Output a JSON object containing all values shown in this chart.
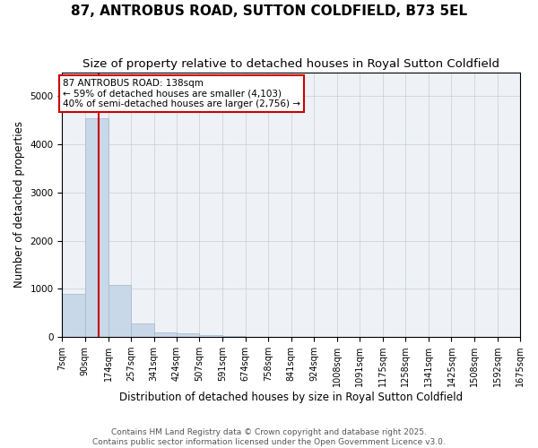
{
  "title": "87, ANTROBUS ROAD, SUTTON COLDFIELD, B73 5EL",
  "subtitle": "Size of property relative to detached houses in Royal Sutton Coldfield",
  "xlabel": "Distribution of detached houses by size in Royal Sutton Coldfield",
  "ylabel": "Number of detached properties",
  "bin_labels": [
    "7sqm",
    "90sqm",
    "174sqm",
    "257sqm",
    "341sqm",
    "424sqm",
    "507sqm",
    "591sqm",
    "674sqm",
    "758sqm",
    "841sqm",
    "924sqm",
    "1008sqm",
    "1091sqm",
    "1175sqm",
    "1258sqm",
    "1341sqm",
    "1425sqm",
    "1508sqm",
    "1592sqm",
    "1675sqm"
  ],
  "bin_edges": [
    7,
    90,
    174,
    257,
    341,
    424,
    507,
    591,
    674,
    758,
    841,
    924,
    1008,
    1091,
    1175,
    1258,
    1341,
    1425,
    1508,
    1592,
    1675
  ],
  "bar_heights": [
    900,
    4550,
    1080,
    290,
    90,
    80,
    50,
    30,
    0,
    0,
    0,
    0,
    0,
    0,
    0,
    0,
    0,
    0,
    0,
    0
  ],
  "bar_color": "#c8d8e8",
  "bar_edge_color": "#a0b8cc",
  "property_line_x": 138,
  "property_line_color": "#cc0000",
  "annotation_line1": "87 ANTROBUS ROAD: 138sqm",
  "annotation_line2": "← 59% of detached houses are smaller (4,103)",
  "annotation_line3": "40% of semi-detached houses are larger (2,756) →",
  "annotation_box_color": "#ffffff",
  "annotation_box_edge_color": "#cc0000",
  "ylim": [
    0,
    5500
  ],
  "grid_color": "#cccccc",
  "bg_color": "#eef2f6",
  "footer": "Contains HM Land Registry data © Crown copyright and database right 2025.\nContains public sector information licensed under the Open Government Licence v3.0.",
  "title_fontsize": 11,
  "subtitle_fontsize": 9.5,
  "tick_fontsize": 7,
  "ylabel_fontsize": 8.5,
  "xlabel_fontsize": 8.5,
  "footer_fontsize": 6.5
}
